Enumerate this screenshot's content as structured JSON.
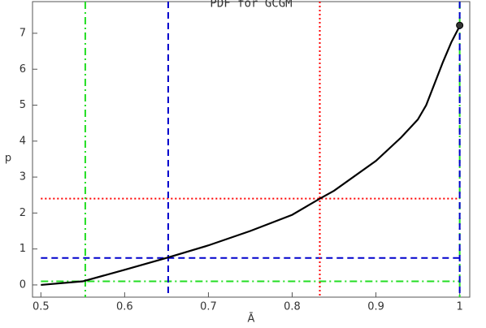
{
  "chart_data": {
    "type": "line",
    "title": "PDF for GCGM",
    "x_label": "Ā",
    "y_label": "p",
    "x": [
      0.5,
      0.55,
      0.6,
      0.65,
      0.7,
      0.75,
      0.8,
      0.833,
      0.85,
      0.9,
      0.93,
      0.95,
      0.96,
      0.97,
      0.98,
      0.99,
      1.0
    ],
    "series": [
      {
        "color": "#000000",
        "values": [
          0,
          0.1,
          0.42,
          0.75,
          1.1,
          1.5,
          1.95,
          2.4,
          2.62,
          3.45,
          4.1,
          4.6,
          5.0,
          5.6,
          6.2,
          6.75,
          7.2
        ]
      }
    ],
    "point": {
      "x": 1.0,
      "y": 7.22
    },
    "hlines": [
      {
        "value": 2.4,
        "color": "#ff0000",
        "style": "dotted"
      },
      {
        "value": 0.75,
        "color": "#0000cc",
        "style": "dashed"
      },
      {
        "value": 0.1,
        "color": "#22dd22",
        "style": "dashdot"
      }
    ],
    "vlines": [
      {
        "value": 0.833,
        "color": "#ff0000",
        "style": "dotted"
      },
      {
        "value": 0.652,
        "color": "#0000cc",
        "style": "dashed"
      },
      {
        "value": 0.553,
        "color": "#22dd22",
        "style": "dashdot"
      },
      {
        "value": 1.0,
        "color": "#22dd22",
        "style": "dashdot"
      },
      {
        "value": 1.0,
        "color": "#0000cc",
        "style": "dashed"
      }
    ],
    "xlim": [
      0.49,
      1.012
    ],
    "ylim": [
      -0.34,
      7.88
    ],
    "xticks": [
      0.5,
      0.6,
      0.7,
      0.8,
      0.9,
      1
    ],
    "yticks": [
      0,
      1,
      2,
      3,
      4,
      5,
      6,
      7
    ]
  }
}
